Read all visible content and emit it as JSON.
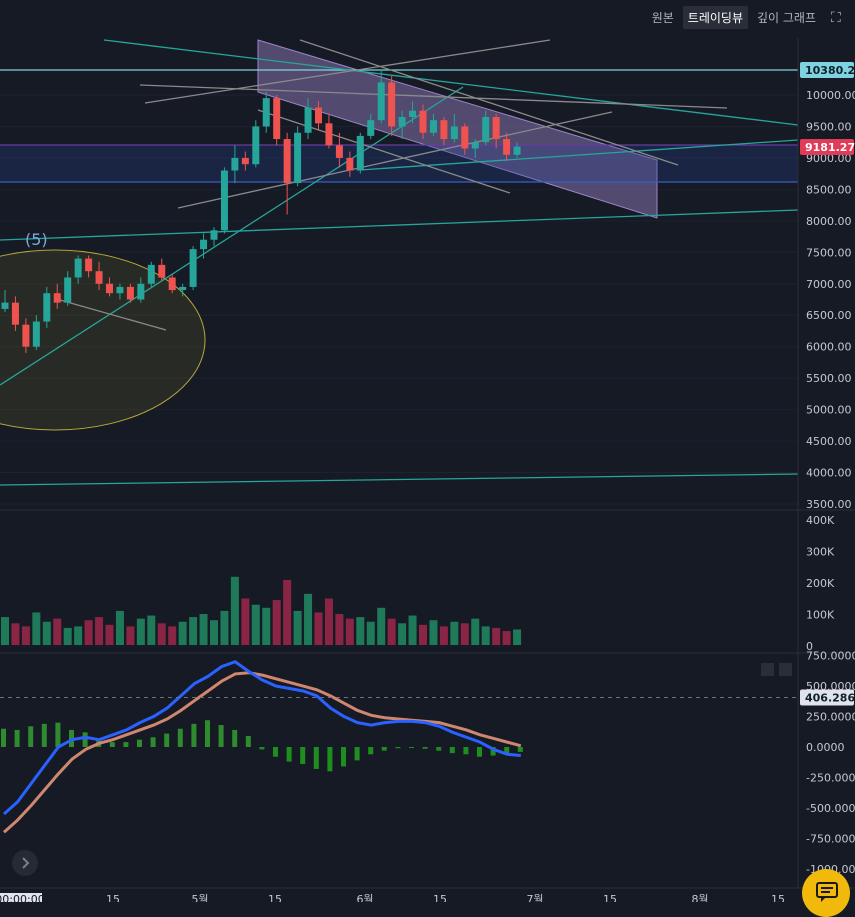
{
  "tabs": {
    "original": "원본",
    "tradingview": "트레이딩뷰",
    "depth": "깊이 그래프"
  },
  "colors": {
    "bg": "#161a25",
    "up": "#26a69a",
    "down": "#ef5350",
    "macd": "#2962ff",
    "signal": "#d08770",
    "channel": "#9c84c9"
  },
  "chart_data": [
    {
      "type": "candlestick",
      "yticks": [
        3500,
        4000,
        4500,
        5000,
        5500,
        6000,
        6500,
        7000,
        7500,
        8000,
        8500,
        9000,
        9500,
        10000
      ],
      "ylim": [
        3500,
        10700
      ],
      "xtick_labels": [
        "00:00:00",
        "15",
        "5월",
        "15",
        "6월",
        "15",
        "7월",
        "15",
        "8월",
        "15"
      ],
      "price_label": "10380.21",
      "last_price": "9181.27",
      "annotation": "(5)",
      "ohlc": [
        [
          6600,
          6900,
          6550,
          6700
        ],
        [
          6700,
          6800,
          6250,
          6350
        ],
        [
          6350,
          6450,
          5900,
          6000
        ],
        [
          6000,
          6500,
          5950,
          6400
        ],
        [
          6400,
          6950,
          6300,
          6850
        ],
        [
          6850,
          7000,
          6600,
          6700
        ],
        [
          6700,
          7200,
          6650,
          7100
        ],
        [
          7100,
          7450,
          7000,
          7400
        ],
        [
          7400,
          7450,
          7100,
          7200
        ],
        [
          7200,
          7350,
          6900,
          7000
        ],
        [
          7000,
          7100,
          6800,
          6850
        ],
        [
          6850,
          7000,
          6750,
          6950
        ],
        [
          6950,
          7000,
          6700,
          6750
        ],
        [
          6750,
          7100,
          6700,
          7000
        ],
        [
          7000,
          7350,
          6950,
          7300
        ],
        [
          7300,
          7400,
          7050,
          7100
        ],
        [
          7100,
          7150,
          6850,
          6900
        ],
        [
          6900,
          7000,
          6800,
          6950
        ],
        [
          6950,
          7600,
          6900,
          7550
        ],
        [
          7550,
          7800,
          7400,
          7700
        ],
        [
          7700,
          7900,
          7600,
          7850
        ],
        [
          7850,
          8850,
          7800,
          8800
        ],
        [
          8800,
          9200,
          8600,
          9000
        ],
        [
          9000,
          9100,
          8800,
          8900
        ],
        [
          8900,
          9600,
          8850,
          9500
        ],
        [
          9500,
          10050,
          9400,
          9950
        ],
        [
          9950,
          10000,
          9200,
          9300
        ],
        [
          9300,
          9400,
          8100,
          8600
        ],
        [
          8600,
          9500,
          8550,
          9400
        ],
        [
          9400,
          9950,
          9300,
          9800
        ],
        [
          9800,
          9900,
          9450,
          9550
        ],
        [
          9550,
          9700,
          9150,
          9200
        ],
        [
          9200,
          9400,
          8850,
          9000
        ],
        [
          9000,
          9100,
          8700,
          8800
        ],
        [
          8800,
          9400,
          8750,
          9350
        ],
        [
          9350,
          9700,
          9300,
          9600
        ],
        [
          9600,
          10400,
          9550,
          10200
        ],
        [
          10200,
          10300,
          9350,
          9500
        ],
        [
          9500,
          9750,
          9300,
          9650
        ],
        [
          9650,
          9900,
          9550,
          9750
        ],
        [
          9750,
          9850,
          9300,
          9400
        ],
        [
          9400,
          9700,
          9350,
          9600
        ],
        [
          9600,
          9650,
          9200,
          9300
        ],
        [
          9300,
          9700,
          9250,
          9500
        ],
        [
          9500,
          9550,
          9050,
          9150
        ],
        [
          9150,
          9300,
          9000,
          9250
        ],
        [
          9250,
          9750,
          9200,
          9650
        ],
        [
          9650,
          9700,
          9150,
          9300
        ],
        [
          9300,
          9400,
          8950,
          9050
        ],
        [
          9050,
          9250,
          9000,
          9180
        ]
      ]
    },
    {
      "type": "bar",
      "yticks": [
        "0",
        "100K",
        "200K",
        "300K",
        "400K"
      ],
      "values": [
        90,
        70,
        60,
        105,
        75,
        85,
        55,
        60,
        80,
        90,
        65,
        110,
        60,
        85,
        95,
        70,
        60,
        75,
        90,
        100,
        80,
        110,
        220,
        150,
        130,
        120,
        145,
        210,
        110,
        165,
        105,
        150,
        100,
        85,
        90,
        75,
        120,
        85,
        70,
        95,
        65,
        80,
        60,
        75,
        70,
        85,
        60,
        55,
        45,
        50
      ]
    },
    {
      "type": "line",
      "yticks": [
        "750.0000",
        "500.0000",
        "250.0000",
        "0.0000",
        "-250.0000",
        "-500.0000",
        "-750.0000",
        "-1000.0000"
      ],
      "current": "406.2865",
      "series": [
        {
          "values": [
            -550,
            -450,
            -300,
            -150,
            0,
            60,
            80,
            60,
            100,
            140,
            200,
            250,
            320,
            420,
            520,
            580,
            660,
            700,
            620,
            550,
            500,
            480,
            460,
            420,
            320,
            250,
            200,
            180,
            200,
            210,
            210,
            200,
            170,
            120,
            80,
            40,
            -20,
            -60,
            -70
          ]
        },
        {
          "values": [
            -700,
            -600,
            -480,
            -350,
            -220,
            -100,
            -20,
            30,
            60,
            100,
            140,
            180,
            230,
            300,
            380,
            460,
            540,
            600,
            610,
            590,
            560,
            530,
            500,
            470,
            420,
            360,
            300,
            260,
            240,
            230,
            220,
            210,
            200,
            170,
            140,
            100,
            70,
            40,
            10
          ]
        }
      ],
      "histogram": [
        150,
        140,
        170,
        190,
        200,
        140,
        120,
        60,
        40,
        40,
        60,
        80,
        110,
        150,
        190,
        220,
        180,
        140,
        90,
        -20,
        -80,
        -120,
        -140,
        -180,
        -200,
        -160,
        -110,
        -60,
        -30,
        -10,
        -5,
        -15,
        -30,
        -50,
        -60,
        -80,
        -70,
        -60,
        -40
      ]
    }
  ]
}
